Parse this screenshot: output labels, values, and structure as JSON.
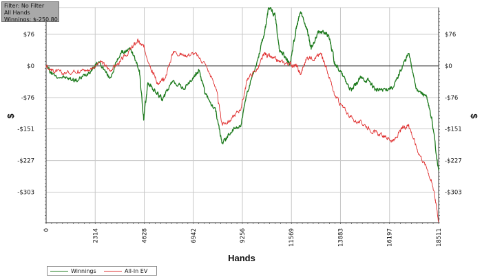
{
  "info_box": {
    "filter": "Filter: No Filter",
    "hands": "All Hands",
    "winnings": "Winnings: $-250.80"
  },
  "legend": {
    "winnings_label": "Winnings",
    "allin_label": "All-In EV"
  },
  "colors": {
    "winnings": "#1e7b1e",
    "allin_ev": "#e03030",
    "grid": "#c8c8c8",
    "zero_line": "#333333",
    "axis": "#333333",
    "background": "#ffffff"
  },
  "chart_data": {
    "type": "line",
    "title": "",
    "xlabel": "Hands",
    "ylabel": "$",
    "xlim": [
      0,
      18511
    ],
    "ylim": [
      -376,
      140
    ],
    "x_ticks": [
      0,
      2314,
      4628,
      6942,
      9256,
      11569,
      13883,
      16197,
      18511
    ],
    "x_tick_labels": [
      "0",
      "2314",
      "4628",
      "6942",
      "9256",
      "11569",
      "13883",
      "16197",
      "18511"
    ],
    "y_ticks": [
      76,
      0,
      -76,
      -151,
      -227,
      -303
    ],
    "y_tick_labels": [
      "$76",
      "$0",
      "-$76",
      "-$151",
      "-$227",
      "-$303"
    ],
    "grid": true,
    "legend_position": "bottom-left",
    "series": [
      {
        "name": "Winnings",
        "color": "#1e7b1e",
        "points": [
          [
            0,
            0
          ],
          [
            300,
            -20
          ],
          [
            1000,
            -30
          ],
          [
            1500,
            -35
          ],
          [
            2000,
            -15
          ],
          [
            2500,
            10
          ],
          [
            3000,
            -30
          ],
          [
            3500,
            30
          ],
          [
            4000,
            40
          ],
          [
            4400,
            -10
          ],
          [
            4600,
            -130
          ],
          [
            4800,
            -40
          ],
          [
            5200,
            -65
          ],
          [
            5500,
            -80
          ],
          [
            6000,
            -35
          ],
          [
            6500,
            -55
          ],
          [
            7000,
            -25
          ],
          [
            7200,
            -10
          ],
          [
            7500,
            -65
          ],
          [
            8000,
            -110
          ],
          [
            8300,
            -185
          ],
          [
            8700,
            -160
          ],
          [
            9200,
            -140
          ],
          [
            9500,
            -60
          ],
          [
            10000,
            20
          ],
          [
            10300,
            80
          ],
          [
            10500,
            140
          ],
          [
            10800,
            120
          ],
          [
            11000,
            40
          ],
          [
            11300,
            20
          ],
          [
            11500,
            5
          ],
          [
            11800,
            90
          ],
          [
            12000,
            130
          ],
          [
            12300,
            90
          ],
          [
            12500,
            40
          ],
          [
            12800,
            80
          ],
          [
            13200,
            80
          ],
          [
            13400,
            60
          ],
          [
            13600,
            10
          ],
          [
            14000,
            -25
          ],
          [
            14400,
            -60
          ],
          [
            14800,
            -30
          ],
          [
            15200,
            -35
          ],
          [
            15600,
            -60
          ],
          [
            16000,
            -55
          ],
          [
            16400,
            -50
          ],
          [
            16800,
            0
          ],
          [
            17100,
            30
          ],
          [
            17500,
            -60
          ],
          [
            17900,
            -70
          ],
          [
            18200,
            -130
          ],
          [
            18511,
            -250.8
          ]
        ]
      },
      {
        "name": "All-In EV",
        "color": "#e03030",
        "points": [
          [
            0,
            0
          ],
          [
            300,
            -10
          ],
          [
            800,
            -18
          ],
          [
            1500,
            -10
          ],
          [
            2000,
            -10
          ],
          [
            2600,
            10
          ],
          [
            3000,
            -10
          ],
          [
            3500,
            10
          ],
          [
            4000,
            40
          ],
          [
            4300,
            60
          ],
          [
            4600,
            45
          ],
          [
            5000,
            -10
          ],
          [
            5300,
            -45
          ],
          [
            5600,
            -30
          ],
          [
            6000,
            35
          ],
          [
            6500,
            25
          ],
          [
            7000,
            30
          ],
          [
            7500,
            5
          ],
          [
            8000,
            -50
          ],
          [
            8300,
            -140
          ],
          [
            8700,
            -130
          ],
          [
            9200,
            -100
          ],
          [
            9500,
            -30
          ],
          [
            10000,
            -5
          ],
          [
            10300,
            30
          ],
          [
            10600,
            20
          ],
          [
            11000,
            10
          ],
          [
            11500,
            5
          ],
          [
            11800,
            0
          ],
          [
            12000,
            -20
          ],
          [
            12300,
            20
          ],
          [
            12700,
            20
          ],
          [
            13000,
            30
          ],
          [
            13300,
            -20
          ],
          [
            13600,
            -70
          ],
          [
            14000,
            -100
          ],
          [
            14500,
            -130
          ],
          [
            15000,
            -140
          ],
          [
            15500,
            -160
          ],
          [
            16000,
            -170
          ],
          [
            16400,
            -180
          ],
          [
            16800,
            -150
          ],
          [
            17100,
            -140
          ],
          [
            17500,
            -200
          ],
          [
            18000,
            -250
          ],
          [
            18300,
            -300
          ],
          [
            18511,
            -375
          ]
        ]
      }
    ]
  }
}
